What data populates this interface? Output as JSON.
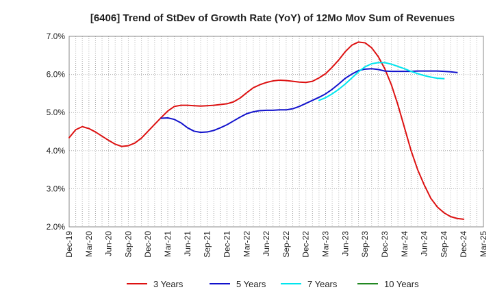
{
  "chart_data": {
    "type": "line",
    "title": "[6406]  Trend of StDev of Growth Rate (YoY) of 12Mo Mov Sum of Revenues",
    "xlabel": "",
    "ylabel": "",
    "ylim": [
      2.0,
      7.0
    ],
    "yticks": [
      2.0,
      3.0,
      4.0,
      5.0,
      6.0,
      7.0
    ],
    "ytick_labels": [
      "2.0%",
      "3.0%",
      "4.0%",
      "5.0%",
      "6.0%",
      "7.0%"
    ],
    "x_start": "Dec-19",
    "x_tick_labels": [
      "Dec-19",
      "Mar-20",
      "Jun-20",
      "Sep-20",
      "Dec-20",
      "Mar-21",
      "Jun-21",
      "Sep-21",
      "Dec-21",
      "Mar-22",
      "Jun-22",
      "Sep-22",
      "Dec-22",
      "Mar-23",
      "Jun-23",
      "Sep-23",
      "Dec-23",
      "Mar-24",
      "Jun-24",
      "Sep-24",
      "Dec-24",
      "Mar-25"
    ],
    "xlim_months": [
      0,
      63
    ],
    "grid": true,
    "legend_position": "bottom",
    "series": [
      {
        "name": "3 Years",
        "color": "#dd1111",
        "start_month": 0,
        "values": [
          4.34,
          4.55,
          4.63,
          4.58,
          4.49,
          4.38,
          4.27,
          4.17,
          4.11,
          4.13,
          4.2,
          4.33,
          4.51,
          4.69,
          4.87,
          5.04,
          5.16,
          5.19,
          5.19,
          5.18,
          5.17,
          5.18,
          5.19,
          5.21,
          5.23,
          5.28,
          5.38,
          5.52,
          5.65,
          5.73,
          5.79,
          5.83,
          5.85,
          5.84,
          5.82,
          5.8,
          5.79,
          5.82,
          5.91,
          6.02,
          6.19,
          6.38,
          6.6,
          6.77,
          6.85,
          6.83,
          6.7,
          6.47,
          6.15,
          5.73,
          5.2,
          4.6,
          4.0,
          3.5,
          3.1,
          2.75,
          2.52,
          2.37,
          2.27,
          2.22,
          2.2
        ]
      },
      {
        "name": "5 Years",
        "color": "#1111cc",
        "start_month": 14,
        "values": [
          4.85,
          4.86,
          4.82,
          4.73,
          4.6,
          4.51,
          4.48,
          4.49,
          4.53,
          4.6,
          4.68,
          4.78,
          4.88,
          4.97,
          5.02,
          5.05,
          5.06,
          5.06,
          5.07,
          5.07,
          5.1,
          5.16,
          5.24,
          5.32,
          5.4,
          5.49,
          5.61,
          5.75,
          5.9,
          6.01,
          6.1,
          6.14,
          6.15,
          6.13,
          6.09,
          6.08,
          6.08,
          6.08,
          6.08,
          6.09,
          6.09,
          6.09,
          6.09,
          6.08,
          6.07,
          6.05
        ]
      },
      {
        "name": "7 Years",
        "color": "#00e5ee",
        "start_month": 38,
        "values": [
          5.32,
          5.39,
          5.49,
          5.61,
          5.75,
          5.91,
          6.07,
          6.2,
          6.28,
          6.31,
          6.31,
          6.27,
          6.21,
          6.15,
          6.08,
          6.02,
          5.97,
          5.93,
          5.9,
          5.89
        ]
      },
      {
        "name": "10 Years",
        "color": "#228822",
        "start_month": 0,
        "values": []
      }
    ]
  }
}
